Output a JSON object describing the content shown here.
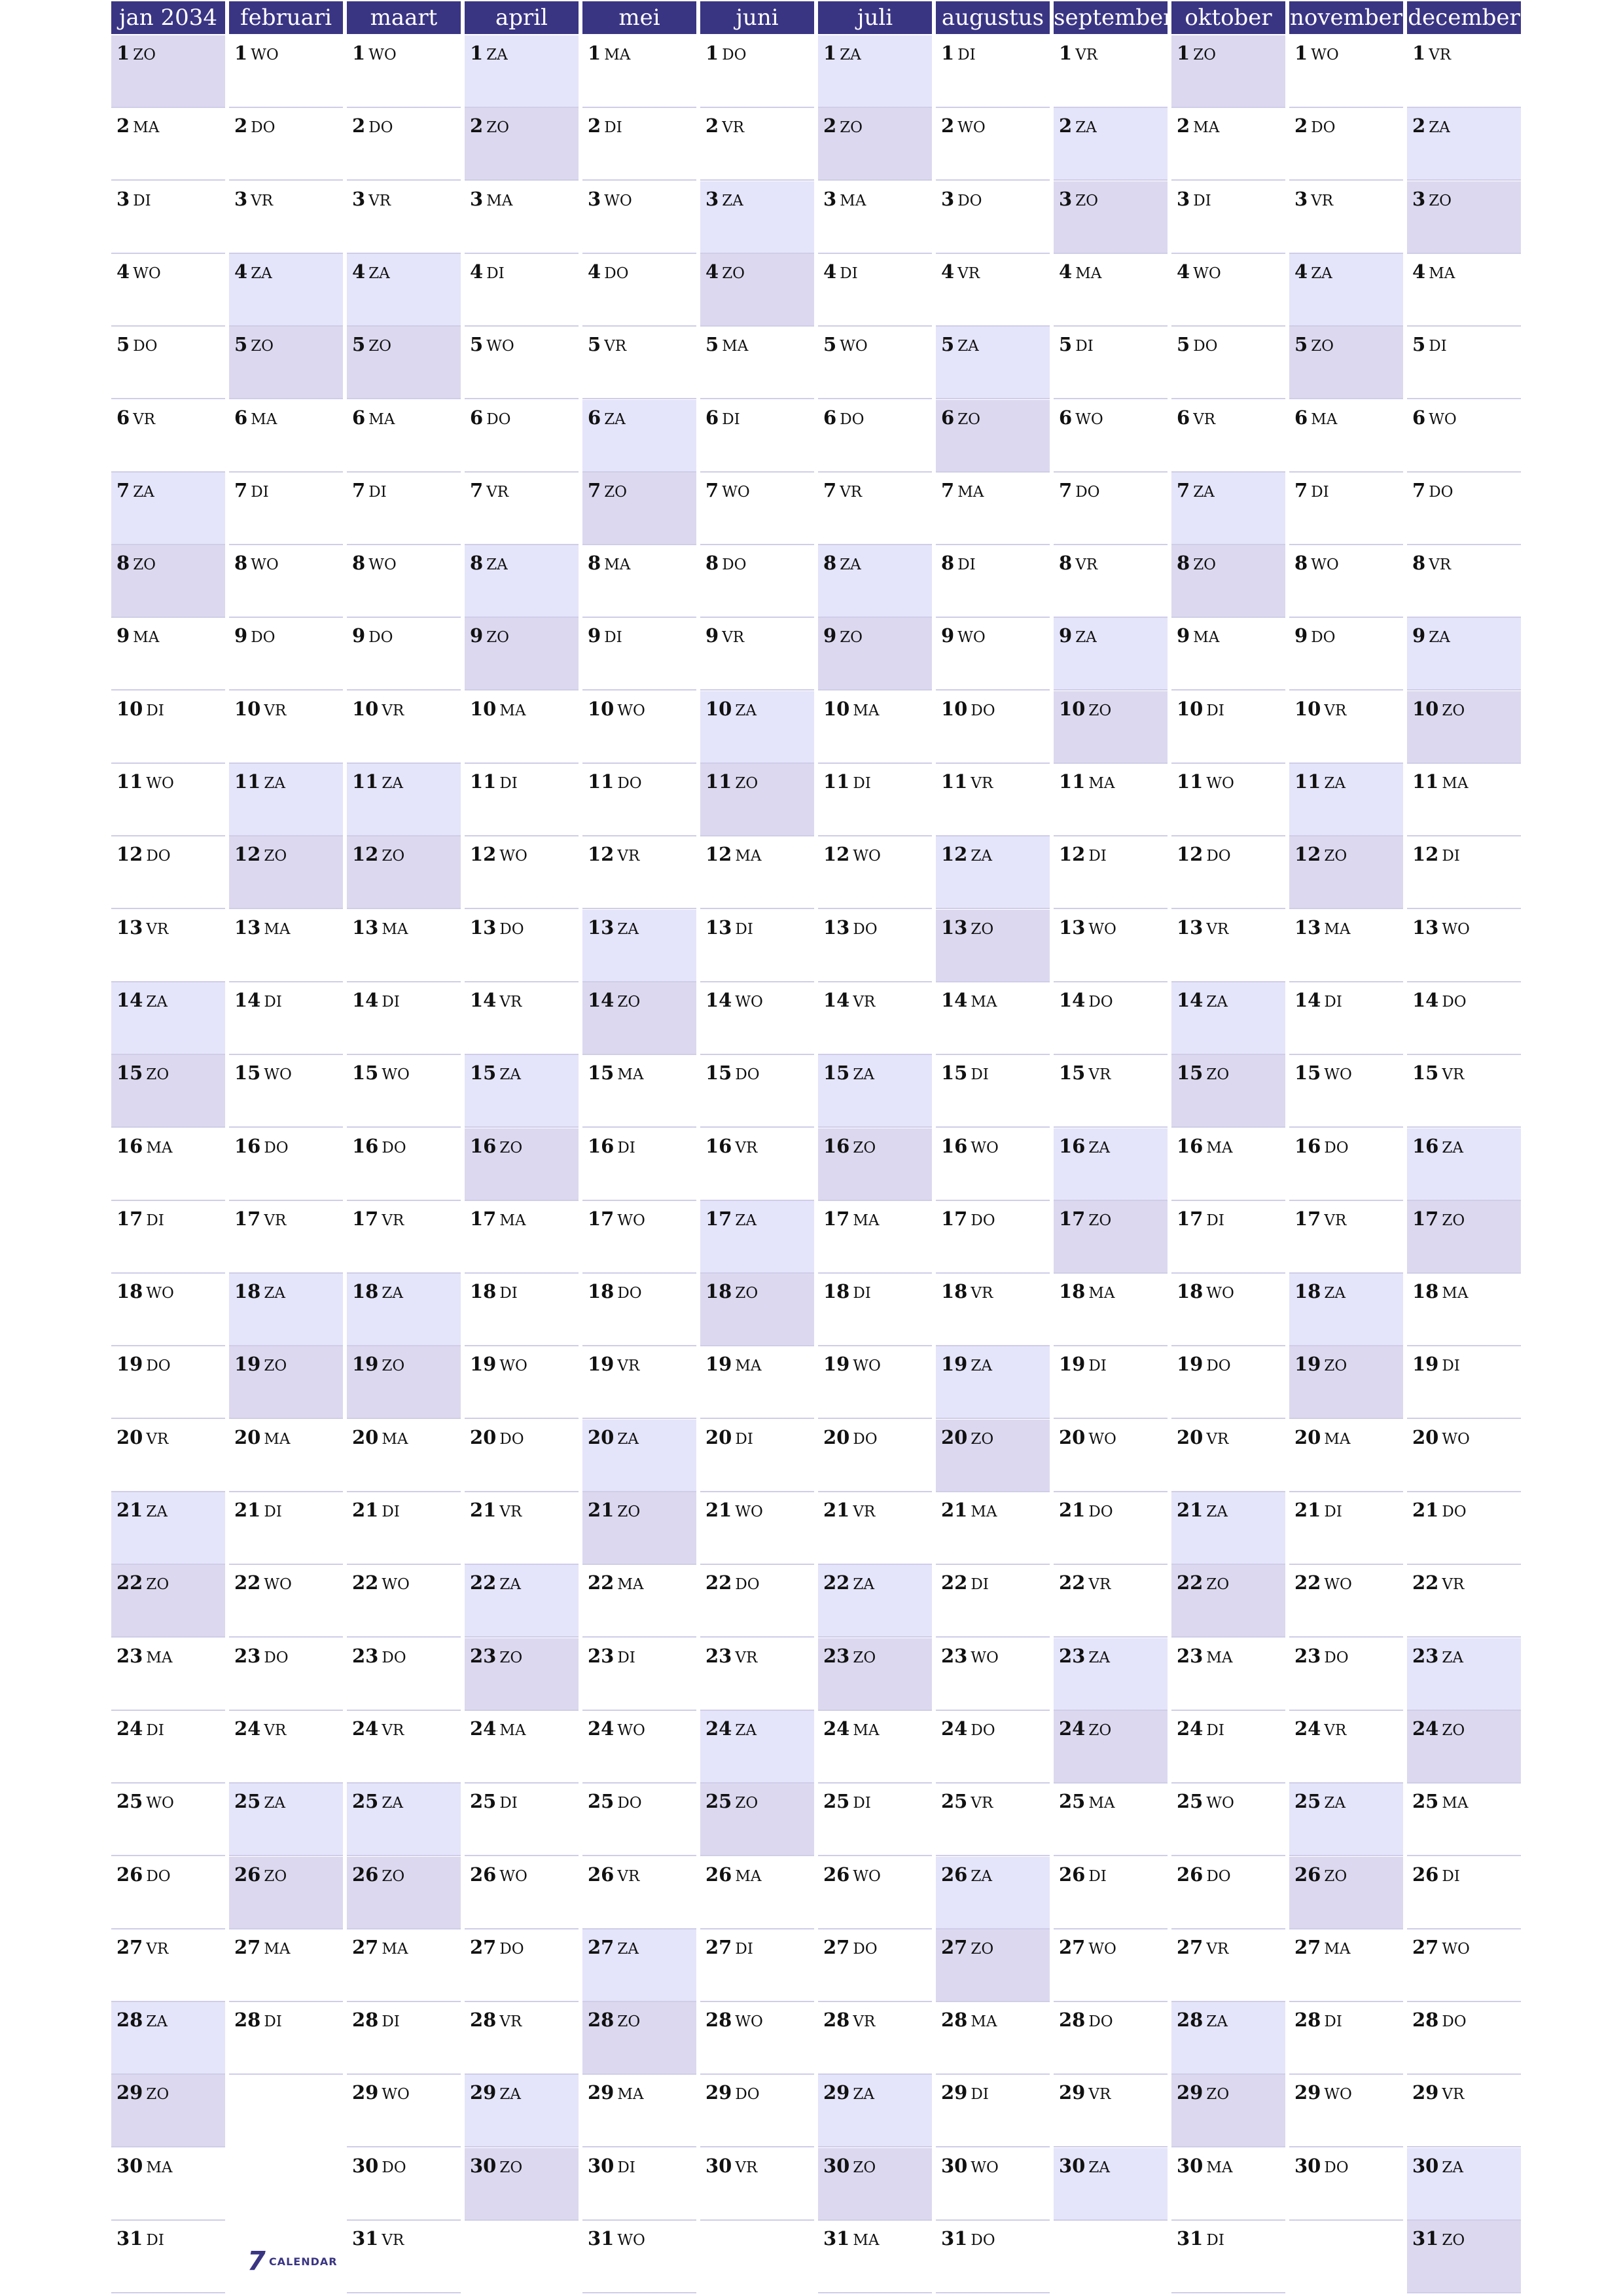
{
  "calendar": {
    "year": 2034,
    "months": [
      {
        "name": "jan 2034",
        "start": 0,
        "days": 31
      },
      {
        "name": "februari",
        "start": 3,
        "days": 28
      },
      {
        "name": "maart",
        "start": 3,
        "days": 31
      },
      {
        "name": "april",
        "start": 6,
        "days": 30
      },
      {
        "name": "mei",
        "start": 1,
        "days": 31
      },
      {
        "name": "juni",
        "start": 4,
        "days": 30
      },
      {
        "name": "juli",
        "start": 6,
        "days": 31
      },
      {
        "name": "augustus",
        "start": 2,
        "days": 31
      },
      {
        "name": "september",
        "start": 5,
        "days": 30
      },
      {
        "name": "oktober",
        "start": 0,
        "days": 31
      },
      {
        "name": "november",
        "start": 3,
        "days": 30
      },
      {
        "name": "december",
        "start": 5,
        "days": 31
      }
    ],
    "weekdays": [
      "ZO",
      "MA",
      "DI",
      "WO",
      "DO",
      "VR",
      "ZA"
    ],
    "colors": {
      "header": "#3a3583",
      "saturday": "#e4e4fa",
      "sunday": "#dcd8ef",
      "divider": "#cfcde8"
    }
  },
  "logo": {
    "mark": "7",
    "text": "CALENDAR"
  }
}
